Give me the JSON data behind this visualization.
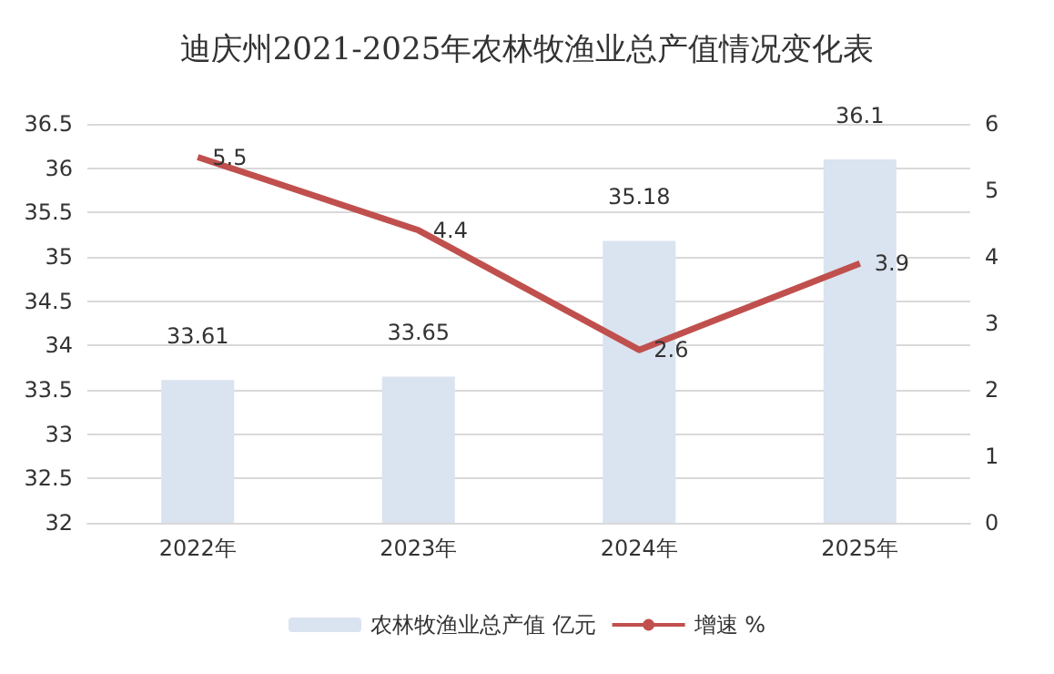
{
  "chart_data": {
    "type": "bar",
    "title": "迪庆州2021-2025年农林牧渔业总产值情况变化表",
    "categories": [
      "2022年",
      "2023年",
      "2024年",
      "2025年"
    ],
    "series": [
      {
        "name": "农林牧渔业总产值 亿元",
        "color": "#dae3f0",
        "values": [
          33.61,
          33.65,
          35.18,
          36.1
        ]
      },
      {
        "name": "增速 %",
        "type": "line",
        "axis": "y2",
        "color": "#c0504d",
        "values": [
          5.5,
          4.4,
          2.6,
          3.9
        ]
      }
    ],
    "ylim": [
      32,
      36.5
    ],
    "yticks": [
      32,
      32.5,
      33,
      33.5,
      34,
      34.5,
      35,
      35.5,
      36,
      36.5
    ],
    "y2lim": [
      0,
      6
    ],
    "y2ticks": [
      0,
      1,
      2,
      3,
      4,
      5,
      6
    ],
    "data_labels": true,
    "grid": "y",
    "legend": "bottom",
    "marker": "none"
  }
}
